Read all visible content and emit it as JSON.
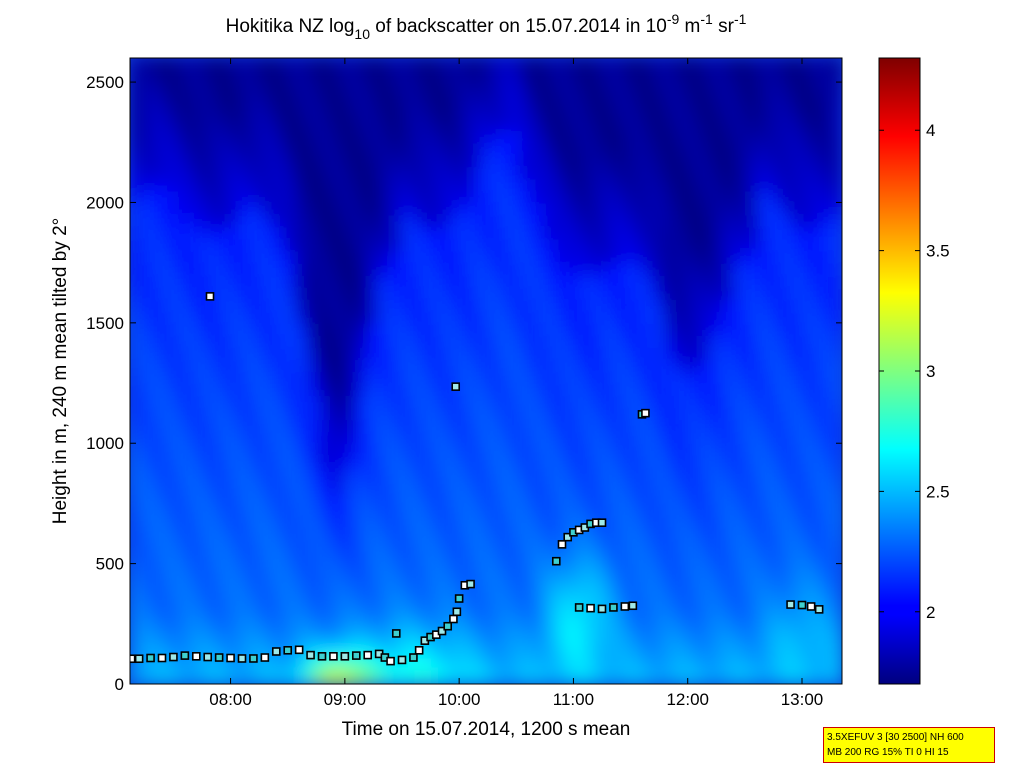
{
  "chart_data": {
    "type": "heatmap",
    "title_parts": {
      "prefix": "Hokitika NZ log",
      "sub": "10",
      "middle": " of backscatter on 15.07.2014 in 10",
      "sup1": "-9",
      "unit1": " m",
      "sup2": "-1",
      "unit2": " sr",
      "sup3": "-1"
    },
    "xlabel": "Time on 15.07.2014, 1200 s mean",
    "ylabel": "Height in m, 240 m mean tilted by 2°",
    "x_unit": "hours",
    "xlim": [
      7.12,
      13.35
    ],
    "ylim": [
      0,
      2600
    ],
    "x_ticks": [
      8,
      9,
      10,
      11,
      12,
      13
    ],
    "x_tick_labels": [
      "08:00",
      "09:00",
      "10:00",
      "11:00",
      "12:00",
      "13:00"
    ],
    "y_ticks": [
      0,
      500,
      1000,
      1500,
      2000,
      2500
    ],
    "y_tick_labels": [
      "0",
      "500",
      "1000",
      "1500",
      "2000",
      "2500"
    ],
    "colorbar": {
      "range": [
        1.7,
        4.3
      ],
      "ticks": [
        2,
        2.5,
        3,
        3.5,
        4
      ],
      "tick_labels": [
        "2",
        "2.5",
        "3",
        "3.5",
        "4"
      ],
      "colormap": "jet"
    },
    "field_description": "log10 backscatter; low boundary layer ~2.5, strong near-surface maximum ~3.3 at 09:00, elevated aerosol layer ~2.6 around 11:00 below 600 m, free troposphere ~2.0, darkest ~1.75 above 1800 m",
    "cloud_base_markers": [
      {
        "t": 7.13,
        "h": 105
      },
      {
        "t": 7.2,
        "h": 105
      },
      {
        "t": 7.3,
        "h": 108
      },
      {
        "t": 7.4,
        "h": 108
      },
      {
        "t": 7.5,
        "h": 112
      },
      {
        "t": 7.6,
        "h": 118
      },
      {
        "t": 7.7,
        "h": 115
      },
      {
        "t": 7.8,
        "h": 112
      },
      {
        "t": 7.9,
        "h": 110
      },
      {
        "t": 8.0,
        "h": 108
      },
      {
        "t": 8.1,
        "h": 106
      },
      {
        "t": 8.2,
        "h": 106
      },
      {
        "t": 8.3,
        "h": 110
      },
      {
        "t": 8.4,
        "h": 135
      },
      {
        "t": 8.5,
        "h": 140
      },
      {
        "t": 8.6,
        "h": 142
      },
      {
        "t": 8.7,
        "h": 120
      },
      {
        "t": 8.8,
        "h": 115
      },
      {
        "t": 8.9,
        "h": 115
      },
      {
        "t": 9.0,
        "h": 115
      },
      {
        "t": 9.1,
        "h": 118
      },
      {
        "t": 9.2,
        "h": 120
      },
      {
        "t": 9.3,
        "h": 125
      },
      {
        "t": 9.35,
        "h": 110
      },
      {
        "t": 9.4,
        "h": 95
      },
      {
        "t": 9.5,
        "h": 100
      },
      {
        "t": 9.6,
        "h": 110
      },
      {
        "t": 9.65,
        "h": 140
      },
      {
        "t": 9.7,
        "h": 180
      },
      {
        "t": 9.75,
        "h": 195
      },
      {
        "t": 9.8,
        "h": 205
      },
      {
        "t": 9.85,
        "h": 220
      },
      {
        "t": 9.9,
        "h": 240
      },
      {
        "t": 9.95,
        "h": 270
      },
      {
        "t": 9.98,
        "h": 300
      },
      {
        "t": 10.0,
        "h": 355
      },
      {
        "t": 10.05,
        "h": 410
      },
      {
        "t": 10.1,
        "h": 415
      },
      {
        "t": 10.85,
        "h": 510
      },
      {
        "t": 10.9,
        "h": 580
      },
      {
        "t": 10.95,
        "h": 610
      },
      {
        "t": 11.0,
        "h": 630
      },
      {
        "t": 11.05,
        "h": 640
      },
      {
        "t": 11.1,
        "h": 650
      },
      {
        "t": 11.15,
        "h": 665
      },
      {
        "t": 11.2,
        "h": 670
      },
      {
        "t": 11.25,
        "h": 670
      },
      {
        "t": 11.05,
        "h": 318
      },
      {
        "t": 11.15,
        "h": 315
      },
      {
        "t": 11.25,
        "h": 312
      },
      {
        "t": 11.35,
        "h": 318
      },
      {
        "t": 11.45,
        "h": 322
      },
      {
        "t": 11.52,
        "h": 325
      },
      {
        "t": 9.45,
        "h": 210
      },
      {
        "t": 7.82,
        "h": 1610
      },
      {
        "t": 9.97,
        "h": 1235
      },
      {
        "t": 11.6,
        "h": 1120
      },
      {
        "t": 11.63,
        "h": 1125
      },
      {
        "t": 12.9,
        "h": 330
      },
      {
        "t": 13.0,
        "h": 328
      },
      {
        "t": 13.08,
        "h": 322
      },
      {
        "t": 13.15,
        "h": 310
      }
    ]
  },
  "info_box": {
    "line1": "3.5XEFUV 3 [30 2500] NH 600",
    "line2": "MB 200 RG 15% TI 0 HI 15"
  }
}
